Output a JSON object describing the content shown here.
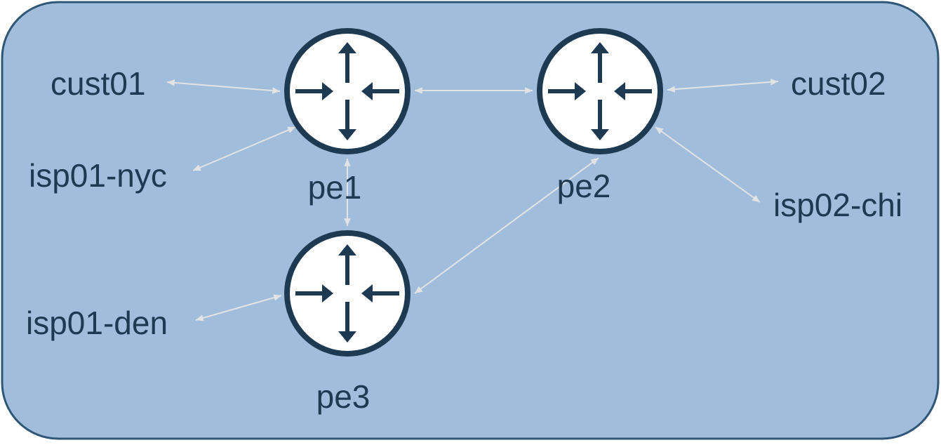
{
  "colors": {
    "background_fill": "#a0bddb",
    "background_stroke": "#2f5577",
    "router_fill": "#ffffff",
    "router_stroke": "#1e3a52",
    "arrow": "#1e3a52",
    "link": "#e3e3e3",
    "label": "#1e3a52"
  },
  "routers": [
    {
      "id": "pe1",
      "label": "pe1",
      "icon": "router-icon"
    },
    {
      "id": "pe2",
      "label": "pe2",
      "icon": "router-icon"
    },
    {
      "id": "pe3",
      "label": "pe3",
      "icon": "router-icon"
    }
  ],
  "endpoints": [
    {
      "id": "cust01",
      "label": "cust01"
    },
    {
      "id": "isp01-nyc",
      "label": "isp01-nyc"
    },
    {
      "id": "isp01-den",
      "label": "isp01-den"
    },
    {
      "id": "cust02",
      "label": "cust02"
    },
    {
      "id": "isp02-chi",
      "label": "isp02-chi"
    }
  ],
  "links": [
    {
      "from": "cust01",
      "to": "pe1"
    },
    {
      "from": "isp01-nyc",
      "to": "pe1"
    },
    {
      "from": "pe1",
      "to": "pe2"
    },
    {
      "from": "pe1",
      "to": "pe3"
    },
    {
      "from": "pe2",
      "to": "cust02"
    },
    {
      "from": "pe2",
      "to": "isp02-chi"
    },
    {
      "from": "pe2",
      "to": "pe3"
    },
    {
      "from": "isp01-den",
      "to": "pe3"
    }
  ]
}
